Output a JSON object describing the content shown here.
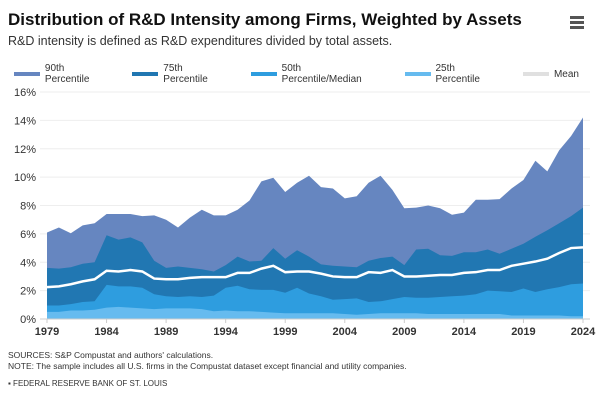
{
  "header": {
    "title": "Distribution of R&D Intensity among Firms, Weighted by Assets",
    "subtitle": "R&D intensity is defined as R&D expenditures divided by total assets.",
    "menu_icon": "hamburger-icon"
  },
  "footer": {
    "sources": "SOURCES: S&P Compustat and authors' calculations.",
    "note": "NOTE: The sample includes all U.S. firms in the Compustat dataset except financial and utility companies.",
    "brand": "▪ FEDERAL RESERVE BANK OF ST. LOUIS"
  },
  "chart_data": {
    "type": "area",
    "title": "Distribution of R&D Intensity among Firms, Weighted by Assets",
    "xlabel": "",
    "ylabel": "",
    "xlim": [
      1979,
      2024
    ],
    "ylim": [
      0,
      16
    ],
    "x_ticks": [
      1979,
      1984,
      1989,
      1994,
      1999,
      2004,
      2009,
      2014,
      2019,
      2024
    ],
    "y_ticks": [
      0,
      2,
      4,
      6,
      8,
      10,
      12,
      14,
      16
    ],
    "y_tick_labels": [
      "0%",
      "2%",
      "4%",
      "6%",
      "8%",
      "10%",
      "12%",
      "14%",
      "16%"
    ],
    "grid": true,
    "legend": "top-left",
    "x_start": 1979,
    "series": [
      {
        "name": "90th Percentile",
        "color": "#6686c0",
        "type": "area",
        "values": [
          6.1,
          6.45,
          6.05,
          6.6,
          6.75,
          7.4,
          7.4,
          7.4,
          7.25,
          7.3,
          7.0,
          6.45,
          7.15,
          7.7,
          7.3,
          7.3,
          7.7,
          8.35,
          9.7,
          9.95,
          8.95,
          9.6,
          10.1,
          9.3,
          9.2,
          8.5,
          8.65,
          9.6,
          10.1,
          9.1,
          7.8,
          7.85,
          8.0,
          7.8,
          7.35,
          7.5,
          8.4,
          8.4,
          8.45,
          9.2,
          9.8,
          11.15,
          10.4,
          11.9,
          12.9,
          14.2
        ]
      },
      {
        "name": "75th Percentile",
        "color": "#2177b2",
        "type": "area",
        "values": [
          3.6,
          3.55,
          3.65,
          3.9,
          4.0,
          5.9,
          5.6,
          5.75,
          5.4,
          4.1,
          3.6,
          3.7,
          3.6,
          3.5,
          3.35,
          3.8,
          4.4,
          4.05,
          4.1,
          5.0,
          4.25,
          4.85,
          4.4,
          3.85,
          3.75,
          3.7,
          3.65,
          4.1,
          4.3,
          4.4,
          3.8,
          4.9,
          4.95,
          4.5,
          4.45,
          4.7,
          4.7,
          4.9,
          4.6,
          4.95,
          5.3,
          5.8,
          6.25,
          6.75,
          7.25,
          7.85
        ]
      },
      {
        "name": "50th Percentile/Median",
        "color": "#2e9ddf",
        "type": "area",
        "values": [
          0.95,
          0.95,
          1.05,
          1.2,
          1.25,
          2.4,
          2.3,
          2.3,
          2.2,
          1.75,
          1.6,
          1.55,
          1.6,
          1.55,
          1.65,
          2.2,
          2.35,
          2.1,
          2.05,
          2.05,
          1.85,
          2.2,
          1.8,
          1.6,
          1.35,
          1.4,
          1.45,
          1.2,
          1.25,
          1.4,
          1.55,
          1.5,
          1.5,
          1.55,
          1.6,
          1.65,
          1.75,
          2.0,
          1.95,
          1.9,
          2.15,
          1.9,
          2.1,
          2.25,
          2.45,
          2.5
        ]
      },
      {
        "name": "25th Percentile",
        "color": "#66bbef",
        "type": "area",
        "values": [
          0.5,
          0.5,
          0.6,
          0.6,
          0.65,
          0.8,
          0.85,
          0.8,
          0.75,
          0.7,
          0.75,
          0.75,
          0.75,
          0.7,
          0.55,
          0.6,
          0.55,
          0.55,
          0.5,
          0.45,
          0.4,
          0.4,
          0.4,
          0.4,
          0.4,
          0.35,
          0.3,
          0.35,
          0.4,
          0.4,
          0.4,
          0.4,
          0.35,
          0.35,
          0.35,
          0.35,
          0.35,
          0.35,
          0.35,
          0.25,
          0.25,
          0.25,
          0.25,
          0.25,
          0.2,
          0.2
        ]
      },
      {
        "name": "Mean",
        "color": "#ffffff",
        "legend_color": "#e0e0e0",
        "type": "line",
        "values": [
          2.25,
          2.3,
          2.45,
          2.65,
          2.8,
          3.4,
          3.35,
          3.45,
          3.35,
          2.85,
          2.8,
          2.8,
          2.9,
          2.95,
          2.95,
          2.95,
          3.25,
          3.25,
          3.55,
          3.75,
          3.3,
          3.35,
          3.35,
          3.2,
          3.0,
          2.95,
          2.95,
          3.3,
          3.25,
          3.45,
          3.0,
          3.0,
          3.05,
          3.1,
          3.1,
          3.25,
          3.3,
          3.45,
          3.45,
          3.75,
          3.9,
          4.05,
          4.25,
          4.65,
          5.0,
          5.05
        ]
      }
    ]
  }
}
